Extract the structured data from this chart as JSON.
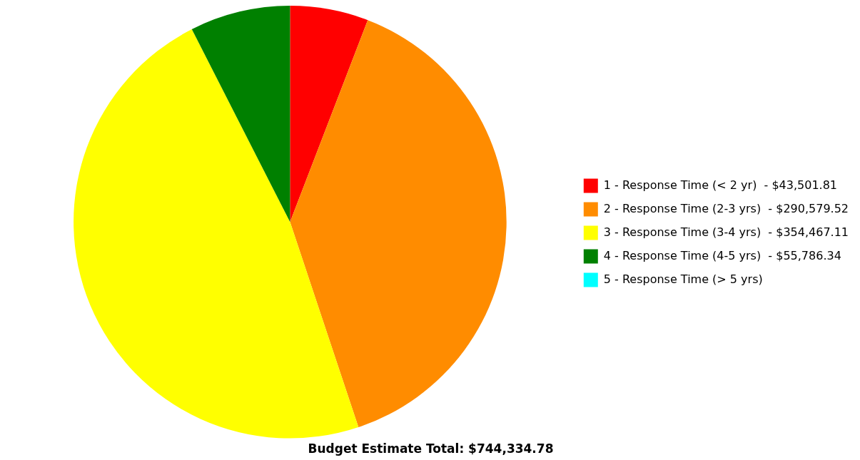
{
  "chart_data": {
    "type": "pie",
    "title": "Budget Estimate Total: $744,334.78",
    "categories": [
      "1 - Response Time (< 2 yr)",
      "2 - Response Time (2-3 yrs)",
      "3 - Response Time (3-4 yrs)",
      "4 - Response Time (4-5 yrs)",
      "5 - Response Time (> 5 yrs)"
    ],
    "values": [
      43501.81,
      290579.52,
      354467.11,
      55786.34,
      0
    ],
    "value_labels": [
      "$43,501.81",
      "$290,579.52",
      "$354,467.11",
      "$55,786.34",
      null
    ],
    "colors": [
      "#ff0000",
      "#ff8c00",
      "#ffff00",
      "#008000",
      "#00ffff"
    ],
    "legend": "right"
  }
}
